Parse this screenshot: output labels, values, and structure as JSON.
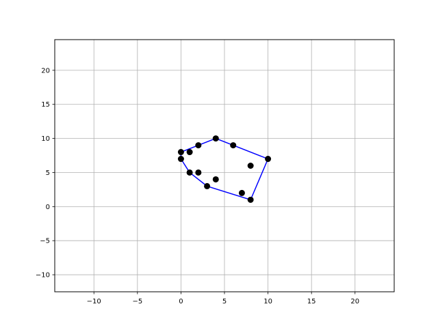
{
  "chart_data": {
    "type": "scatter",
    "title": "",
    "xlabel": "",
    "ylabel": "",
    "xlim": [
      -14.5,
      24.5
    ],
    "ylim": [
      -12.5,
      24.5
    ],
    "x_ticks": [
      -10,
      -5,
      0,
      5,
      10,
      15,
      20
    ],
    "y_ticks": [
      -10,
      -5,
      0,
      5,
      10,
      15,
      20
    ],
    "grid": true,
    "points": [
      {
        "x": 0,
        "y": 8
      },
      {
        "x": 0,
        "y": 7
      },
      {
        "x": 1,
        "y": 8
      },
      {
        "x": 2,
        "y": 9
      },
      {
        "x": 4,
        "y": 10
      },
      {
        "x": 6,
        "y": 9
      },
      {
        "x": 10,
        "y": 7
      },
      {
        "x": 8,
        "y": 6
      },
      {
        "x": 1,
        "y": 5
      },
      {
        "x": 2,
        "y": 5
      },
      {
        "x": 4,
        "y": 4
      },
      {
        "x": 3,
        "y": 3
      },
      {
        "x": 7,
        "y": 2
      },
      {
        "x": 8,
        "y": 1
      }
    ],
    "hull": [
      {
        "x": 0,
        "y": 8
      },
      {
        "x": 2,
        "y": 9
      },
      {
        "x": 4,
        "y": 10
      },
      {
        "x": 6,
        "y": 9
      },
      {
        "x": 10,
        "y": 7
      },
      {
        "x": 8,
        "y": 1
      },
      {
        "x": 3,
        "y": 3
      },
      {
        "x": 1,
        "y": 5
      },
      {
        "x": 0,
        "y": 7
      },
      {
        "x": 0,
        "y": 8
      }
    ],
    "colors": {
      "points": "#000000",
      "hull": "#0000ff",
      "grid": "#b0b0b0"
    }
  }
}
